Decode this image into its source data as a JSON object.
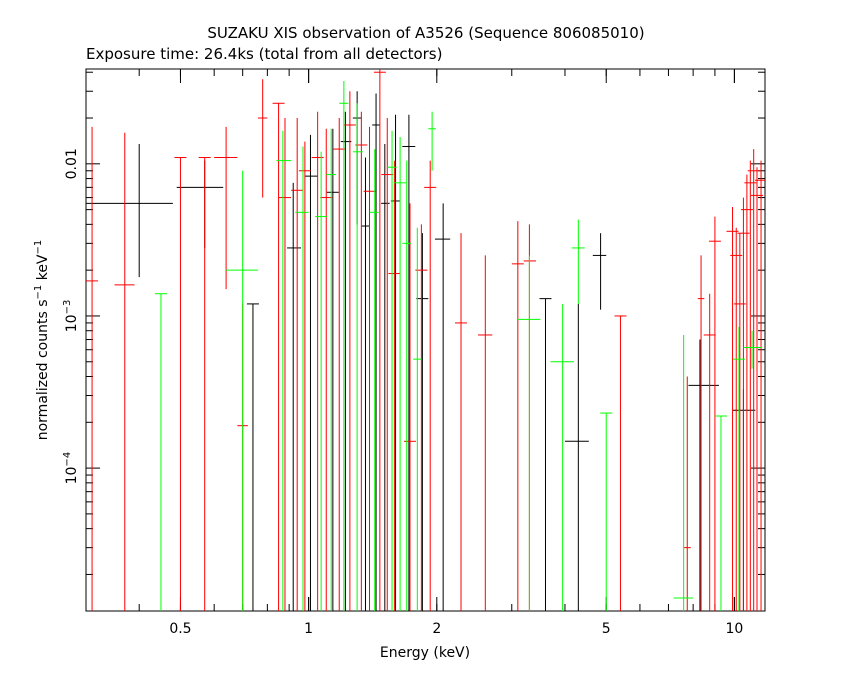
{
  "chart_data": {
    "type": "scatter",
    "title": "SUZAKU XIS observation of A3526 (Sequence 806085010)",
    "subtitle": "Exposure time: 26.4ks (total from all detectors)",
    "xlabel": "Energy (keV)",
    "ylabel_parts": {
      "a": "normalized counts s",
      "a_sup": "−1",
      "b": " keV",
      "b_sup": "−1"
    },
    "xscale": "log",
    "yscale": "log",
    "xlim": [
      0.3,
      11.8
    ],
    "ylim": [
      1.15e-05,
      0.042
    ],
    "xticks": [
      {
        "v": 0.5,
        "label": "0.5"
      },
      {
        "v": 1,
        "label": "1"
      },
      {
        "v": 2,
        "label": "2"
      },
      {
        "v": 5,
        "label": "5"
      },
      {
        "v": 10,
        "label": "10"
      }
    ],
    "yticks": [
      {
        "v": 0.01,
        "label": "0.01"
      },
      {
        "v": 0.001,
        "label": "10",
        "sup": "−3"
      },
      {
        "v": 0.0001,
        "label": "10",
        "sup": "−4"
      }
    ],
    "series": [
      {
        "color": "#000000",
        "points": [
          {
            "x": 0.4,
            "xlo": 0.3,
            "xhi": 0.48,
            "y": 0.0055,
            "ylo": 0.0018,
            "yhi": 0.0135
          },
          {
            "x": 0.57,
            "xlo": 0.49,
            "xhi": 0.63,
            "y": 0.007,
            "ylo": 0.0028,
            "yhi": 0.0105
          },
          {
            "x": 0.74,
            "y": 0.0012,
            "ylo": 1.15e-05,
            "yhi": 0.0012
          },
          {
            "x": 0.92,
            "xlo": 0.89,
            "xhi": 0.96,
            "y": 0.0028,
            "ylo": 1.15e-05,
            "yhi": 0.0075
          },
          {
            "x": 1.01,
            "xlo": 0.98,
            "xhi": 1.05,
            "y": 0.0083,
            "ylo": 1.15e-05,
            "yhi": 0.0155
          },
          {
            "x": 1.14,
            "y": 0.0065,
            "ylo": 1.15e-05,
            "yhi": 0.017
          },
          {
            "x": 1.22,
            "xlo": 1.19,
            "xhi": 1.26,
            "y": 0.014,
            "ylo": 1.15e-05,
            "yhi": 0.022
          },
          {
            "x": 1.3,
            "xlo": 1.27,
            "xhi": 1.33,
            "y": 0.02,
            "ylo": 0.004,
            "yhi": 0.03
          },
          {
            "x": 1.36,
            "xlo": 1.33,
            "xhi": 1.39,
            "y": 0.0039,
            "ylo": 1.15e-05,
            "yhi": 0.011
          },
          {
            "x": 1.44,
            "xlo": 1.41,
            "xhi": 1.47,
            "y": 0.018,
            "ylo": 1.15e-05,
            "yhi": 0.029
          },
          {
            "x": 1.51,
            "xlo": 1.48,
            "xhi": 1.55,
            "y": 0.0055,
            "ylo": 1.15e-05,
            "yhi": 0.0135
          },
          {
            "x": 1.6,
            "xlo": 1.56,
            "xhi": 1.64,
            "y": 0.0057,
            "ylo": 1.15e-05,
            "yhi": 0.021
          },
          {
            "x": 1.72,
            "xlo": 1.66,
            "xhi": 1.78,
            "y": 0.013,
            "ylo": 1.15e-05,
            "yhi": 0.021
          },
          {
            "x": 1.85,
            "xlo": 1.79,
            "xhi": 1.91,
            "y": 0.0013,
            "ylo": 1.15e-05,
            "yhi": 0.0035
          },
          {
            "x": 2.07,
            "xlo": 1.98,
            "xhi": 2.15,
            "y": 0.0032,
            "ylo": 1.15e-05,
            "yhi": 0.0055
          },
          {
            "x": 3.6,
            "y": 0.0013,
            "ylo": 1.15e-05,
            "yhi": 0.0013
          },
          {
            "x": 4.3,
            "xlo": 4.0,
            "xhi": 4.55,
            "y": 0.00015,
            "ylo": 1.15e-05,
            "yhi": 0.0012
          },
          {
            "x": 4.85,
            "xlo": 4.65,
            "xhi": 5.0,
            "y": 0.0025,
            "ylo": 0.0011,
            "yhi": 0.0035
          },
          {
            "x": 8.3,
            "xlo": 7.8,
            "xhi": 9.2,
            "y": 0.00035,
            "ylo": 1.15e-05,
            "yhi": 0.0007
          },
          {
            "x": 10.5,
            "xlo": 9.9,
            "xhi": 11.2,
            "y": 0.00024,
            "ylo": 1.15e-05,
            "yhi": 0.00033
          }
        ]
      },
      {
        "color": "#ff0000",
        "points": [
          {
            "x": 0.31,
            "y": 0.0017,
            "ylo": 1.15e-05,
            "yhi": 0.0175
          },
          {
            "x": 0.37,
            "xlo": 0.35,
            "xhi": 0.39,
            "y": 0.0016,
            "ylo": 1.15e-05,
            "yhi": 0.016
          },
          {
            "x": 0.5,
            "y": 0.011,
            "ylo": 1.15e-05,
            "yhi": 0.011
          },
          {
            "x": 0.57,
            "y": 0.011,
            "ylo": 1.15e-05,
            "yhi": 0.011
          },
          {
            "x": 0.64,
            "xlo": 0.6,
            "xhi": 0.68,
            "y": 0.011,
            "ylo": 0.0015,
            "yhi": 0.0175
          },
          {
            "x": 0.7,
            "xlo": 0.68,
            "xhi": 0.72,
            "y": 0.00019,
            "ylo": 1.15e-05,
            "yhi": 0.0012
          },
          {
            "x": 0.78,
            "xlo": 0.76,
            "xhi": 0.8,
            "y": 0.02,
            "ylo": 0.006,
            "yhi": 0.036
          },
          {
            "x": 0.85,
            "y": 0.025,
            "ylo": 1.15e-05,
            "yhi": 0.025
          },
          {
            "x": 0.88,
            "y": 0.006,
            "ylo": 1.15e-05,
            "yhi": 0.02
          },
          {
            "x": 0.94,
            "y": 0.0067,
            "ylo": 1.15e-05,
            "yhi": 0.02
          },
          {
            "x": 0.98,
            "y": 0.009,
            "ylo": 1.15e-05,
            "yhi": 0.014
          },
          {
            "x": 1.05,
            "y": 0.011,
            "ylo": 1.15e-05,
            "yhi": 0.022
          },
          {
            "x": 1.1,
            "y": 0.006,
            "ylo": 1.15e-05,
            "yhi": 0.017
          },
          {
            "x": 1.18,
            "y": 0.0125,
            "ylo": 1.15e-05,
            "yhi": 0.02
          },
          {
            "x": 1.25,
            "y": 0.018,
            "ylo": 1.15e-05,
            "yhi": 0.03
          },
          {
            "x": 1.33,
            "y": 0.0133,
            "ylo": 1.15e-05,
            "yhi": 0.022
          },
          {
            "x": 1.39,
            "y": 0.0066,
            "ylo": 1.15e-05,
            "yhi": 0.0175
          },
          {
            "x": 1.47,
            "y": 0.04,
            "ylo": 1.15e-05,
            "yhi": 0.05
          },
          {
            "x": 1.53,
            "y": 0.0085,
            "ylo": 1.15e-05,
            "yhi": 0.02
          },
          {
            "x": 1.59,
            "y": 0.0019,
            "ylo": 1.15e-05,
            "yhi": 0.0105
          },
          {
            "x": 1.73,
            "y": 0.00015,
            "ylo": 1.15e-05,
            "yhi": 0.0055
          },
          {
            "x": 1.84,
            "y": 0.002,
            "ylo": 1.15e-05,
            "yhi": 0.004
          },
          {
            "x": 1.93,
            "y": 0.007,
            "ylo": 1.15e-05,
            "yhi": 0.0105
          },
          {
            "x": 2.28,
            "y": 0.0009,
            "ylo": 1.15e-05,
            "yhi": 0.0035
          },
          {
            "x": 2.6,
            "xlo": 2.5,
            "xhi": 2.7,
            "y": 0.00075,
            "ylo": 1.15e-05,
            "yhi": 0.0025
          },
          {
            "x": 3.1,
            "y": 0.0022,
            "ylo": 1.15e-05,
            "yhi": 0.0042
          },
          {
            "x": 3.3,
            "xlo": 3.2,
            "xhi": 3.42,
            "y": 0.0023,
            "ylo": 1.15e-05,
            "yhi": 0.004
          },
          {
            "x": 5.4,
            "y": 0.001,
            "ylo": 1.15e-05,
            "yhi": 0.001
          },
          {
            "x": 7.75,
            "xlo": 7.6,
            "xhi": 7.9,
            "y": 3e-05,
            "ylo": 1.15e-05,
            "yhi": 0.0004
          },
          {
            "x": 8.35,
            "xlo": 8.2,
            "xhi": 8.5,
            "y": 0.0013,
            "ylo": 1.15e-05,
            "yhi": 0.0025
          },
          {
            "x": 8.75,
            "y": 0.00075,
            "ylo": 1.15e-05,
            "yhi": 0.0014
          },
          {
            "x": 9.0,
            "y": 0.0031,
            "ylo": 1.15e-05,
            "yhi": 0.0045
          },
          {
            "x": 9.9,
            "y": 0.0036,
            "ylo": 1.15e-05,
            "yhi": 0.0052
          },
          {
            "x": 10.1,
            "y": 0.0025,
            "ylo": 1.15e-05,
            "yhi": 0.0038
          },
          {
            "x": 10.3,
            "y": 0.0012,
            "ylo": 1.15e-05,
            "yhi": 0.0035
          },
          {
            "x": 10.5,
            "y": 0.0035,
            "ylo": 1.15e-05,
            "yhi": 0.006
          },
          {
            "x": 10.7,
            "y": 0.005,
            "ylo": 1.15e-05,
            "yhi": 0.0085
          },
          {
            "x": 10.9,
            "y": 0.0075,
            "ylo": 1.15e-05,
            "yhi": 0.0105
          },
          {
            "x": 11.1,
            "y": 0.009,
            "ylo": 1.15e-05,
            "yhi": 0.0125
          },
          {
            "x": 11.3,
            "y": 0.0062,
            "ylo": 1.15e-05,
            "yhi": 0.0095
          },
          {
            "x": 11.55,
            "y": 0.0078,
            "ylo": 1.15e-05,
            "yhi": 0.0105
          }
        ]
      },
      {
        "color": "#00ff00",
        "points": [
          {
            "x": 0.45,
            "y": 0.0014,
            "ylo": 1.15e-05,
            "yhi": 0.0014
          },
          {
            "x": 0.7,
            "xlo": 0.64,
            "xhi": 0.76,
            "y": 0.002,
            "ylo": 1.15e-05,
            "yhi": 0.009
          },
          {
            "x": 0.87,
            "xlo": 0.84,
            "xhi": 0.91,
            "y": 0.0105,
            "ylo": 1.15e-05,
            "yhi": 0.0165
          },
          {
            "x": 0.97,
            "xlo": 0.93,
            "xhi": 1.0,
            "y": 0.0048,
            "ylo": 1.15e-05,
            "yhi": 0.013
          },
          {
            "x": 1.07,
            "y": 0.0045,
            "ylo": 1.15e-05,
            "yhi": 0.012
          },
          {
            "x": 1.13,
            "xlo": 1.1,
            "xhi": 1.16,
            "y": 0.0085,
            "ylo": 1.15e-05,
            "yhi": 0.017
          },
          {
            "x": 1.21,
            "xlo": 1.18,
            "xhi": 1.24,
            "y": 0.025,
            "ylo": 1.15e-05,
            "yhi": 0.035
          },
          {
            "x": 1.3,
            "xlo": 1.27,
            "xhi": 1.34,
            "y": 0.012,
            "ylo": 1.15e-05,
            "yhi": 0.025
          },
          {
            "x": 1.43,
            "xlo": 1.39,
            "xhi": 1.46,
            "y": 0.0048,
            "ylo": 1.15e-05,
            "yhi": 0.0125
          },
          {
            "x": 1.57,
            "xlo": 1.53,
            "xhi": 1.61,
            "y": 0.0095,
            "ylo": 1.15e-05,
            "yhi": 0.0165
          },
          {
            "x": 1.64,
            "y": 0.0075,
            "ylo": 1.15e-05,
            "yhi": 0.015
          },
          {
            "x": 1.7,
            "xlo": 1.66,
            "xhi": 1.74,
            "y": 0.003,
            "ylo": 1.15e-05,
            "yhi": 0.0105
          },
          {
            "x": 1.8,
            "xlo": 1.76,
            "xhi": 1.84,
            "y": 0.00052,
            "ylo": 1.15e-05,
            "yhi": 0.0038
          },
          {
            "x": 1.95,
            "xlo": 1.91,
            "xhi": 1.99,
            "y": 0.017,
            "ylo": 0.009,
            "yhi": 0.022
          },
          {
            "x": 3.3,
            "xlo": 3.1,
            "xhi": 3.5,
            "y": 0.00095,
            "ylo": 1.15e-05,
            "yhi": 0.0025
          },
          {
            "x": 3.95,
            "xlo": 3.7,
            "xhi": 4.2,
            "y": 0.0005,
            "ylo": 1.15e-05,
            "yhi": 0.0012
          },
          {
            "x": 4.3,
            "xlo": 4.15,
            "xhi": 4.45,
            "y": 0.0028,
            "ylo": 0.0012,
            "yhi": 0.0043
          },
          {
            "x": 5.0,
            "y": 0.00023,
            "ylo": 1.15e-05,
            "yhi": 0.00023
          },
          {
            "x": 7.6,
            "xlo": 7.2,
            "xhi": 8.0,
            "y": 1.4e-05,
            "ylo": 1.15e-05,
            "yhi": 0.00075
          },
          {
            "x": 9.3,
            "y": 0.00022,
            "ylo": 1.15e-05,
            "yhi": 0.00022
          },
          {
            "x": 10.25,
            "y": 0.00052,
            "ylo": 1.15e-05,
            "yhi": 0.00085
          },
          {
            "x": 11.0,
            "xlo": 10.5,
            "xhi": 11.6,
            "y": 0.00062,
            "ylo": 0.00045,
            "yhi": 0.0008
          }
        ]
      }
    ]
  }
}
